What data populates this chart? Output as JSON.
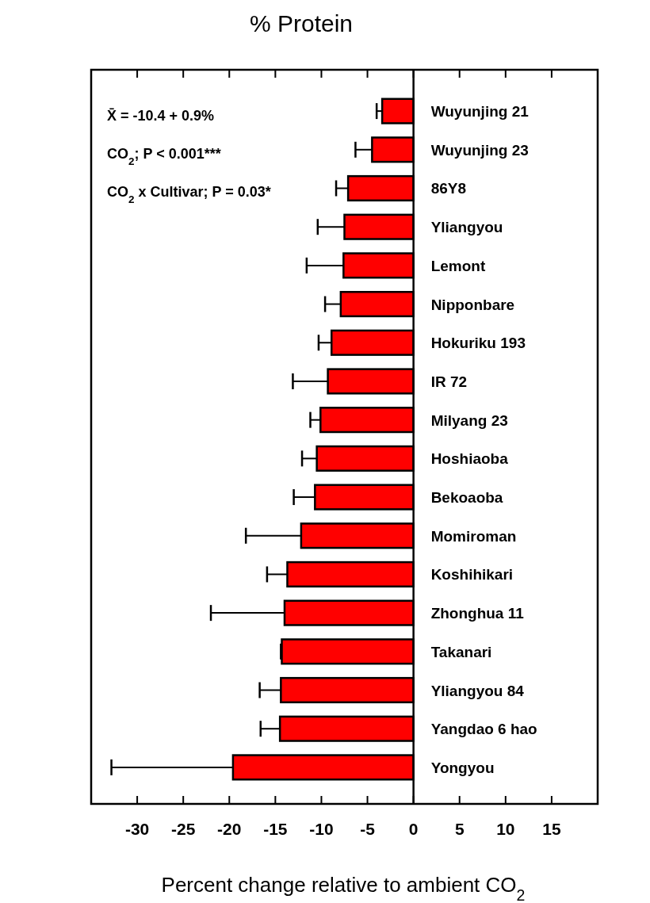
{
  "chart_data": {
    "type": "bar",
    "orientation": "horizontal",
    "title": "% Protein",
    "xlabel": "Percent change relative to ambient CO$_{2}$",
    "categories": [
      "Wuyunjing 21",
      "Wuyunjing 23",
      "86Y8",
      "Yliangyou",
      "Lemont",
      "Nipponbare",
      "Hokuriku 193",
      "IR 72",
      "Milyang 23",
      "Hoshiaoba",
      "Bekoaoba",
      "Momiroman",
      "Koshihikari",
      "Zhonghua 11",
      "Takanari",
      "Yliangyou 84",
      "Yangdao 6 hao",
      "Yongyou"
    ],
    "values": [
      -3.4,
      -4.5,
      -7.1,
      -7.5,
      -7.6,
      -7.9,
      -8.9,
      -9.3,
      -10.1,
      -10.5,
      -10.7,
      -12.2,
      -13.7,
      -14.0,
      -14.3,
      -14.4,
      -14.5,
      -19.6
    ],
    "errors": [
      [
        -4.0,
        -3.4
      ],
      [
        -6.3,
        -4.5
      ],
      [
        -8.4,
        -7.1
      ],
      [
        -10.4,
        -7.5
      ],
      [
        -11.6,
        -7.6
      ],
      [
        -9.6,
        -7.9
      ],
      [
        -10.3,
        -8.9
      ],
      [
        -13.1,
        -9.3
      ],
      [
        -11.2,
        -10.1
      ],
      [
        -12.1,
        -10.5
      ],
      [
        -13.0,
        -10.7
      ],
      [
        -18.2,
        -12.2
      ],
      [
        -15.9,
        -13.7
      ],
      [
        -22.0,
        -14.0
      ],
      [
        -14.4,
        -14.3
      ],
      [
        -16.7,
        -14.4
      ],
      [
        -16.6,
        -14.5
      ],
      [
        -32.8,
        -19.6
      ]
    ],
    "color": "#ff0000",
    "xlim": [
      -35,
      20
    ],
    "xticks": [
      -30,
      -25,
      -20,
      -15,
      -10,
      -5,
      0,
      5,
      10,
      15
    ],
    "annotations": [
      "X̄ = -10.4 + 0.9%",
      "CO$_{2}$; P < 0.001***",
      "CO$_{2}$ x Cultivar; P = 0.03*"
    ]
  }
}
